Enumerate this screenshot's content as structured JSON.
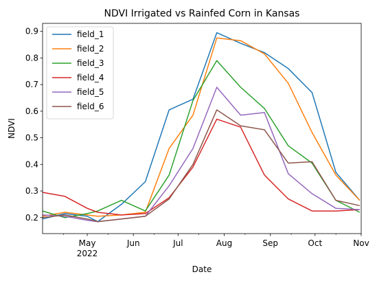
{
  "chart_data": {
    "type": "line",
    "title": "NDVI Irrigated vs Rainfed Corn in Kansas",
    "xlabel": "Date",
    "ylabel": "NDVI",
    "xlim": [
      "2022-04-01",
      "2022-11-01"
    ],
    "ylim": [
      0.14,
      0.93
    ],
    "x_ticks": [
      {
        "date": "2022-05-01",
        "label": "May",
        "sublabel": "2022"
      },
      {
        "date": "2022-06-01",
        "label": "Jun",
        "sublabel": ""
      },
      {
        "date": "2022-07-01",
        "label": "Jul",
        "sublabel": ""
      },
      {
        "date": "2022-08-01",
        "label": "Aug",
        "sublabel": ""
      },
      {
        "date": "2022-09-01",
        "label": "Sep",
        "sublabel": ""
      },
      {
        "date": "2022-10-01",
        "label": "Oct",
        "sublabel": ""
      },
      {
        "date": "2022-11-01",
        "label": "Nov",
        "sublabel": ""
      }
    ],
    "x_minor_ticks": [
      "2022-04-15",
      "2022-05-15",
      "2022-06-15",
      "2022-07-15",
      "2022-08-15",
      "2022-09-15",
      "2022-10-15"
    ],
    "y_ticks": [
      0.2,
      0.3,
      0.4,
      0.5,
      0.6,
      0.7,
      0.8,
      0.9
    ],
    "grid": false,
    "legend": "top-left",
    "x": [
      "2022-04-01",
      "2022-04-16",
      "2022-05-01",
      "2022-05-08",
      "2022-05-24",
      "2022-06-09",
      "2022-06-25",
      "2022-07-11",
      "2022-07-27",
      "2022-08-12",
      "2022-08-28",
      "2022-09-13",
      "2022-09-29",
      "2022-10-15",
      "2022-10-31"
    ],
    "series": [
      {
        "name": "field_1",
        "color": "#1f77b4",
        "values": [
          0.195,
          0.215,
          0.205,
          0.185,
          0.25,
          0.335,
          0.605,
          0.645,
          0.895,
          0.855,
          0.82,
          0.76,
          0.67,
          0.37,
          0.265
        ]
      },
      {
        "name": "field_2",
        "color": "#ff7f0e",
        "values": [
          0.205,
          0.22,
          0.21,
          0.205,
          0.21,
          0.22,
          0.46,
          0.585,
          0.875,
          0.865,
          0.815,
          0.705,
          0.52,
          0.36,
          0.265
        ]
      },
      {
        "name": "field_3",
        "color": "#2ca02c",
        "values": [
          0.225,
          0.2,
          0.215,
          0.225,
          0.265,
          0.225,
          0.36,
          0.64,
          0.79,
          0.69,
          0.61,
          0.47,
          0.405,
          0.265,
          0.22
        ]
      },
      {
        "name": "field_4",
        "color": "#d62728",
        "values": [
          0.295,
          0.28,
          0.235,
          0.22,
          0.21,
          0.215,
          0.275,
          0.39,
          0.57,
          0.54,
          0.36,
          0.27,
          0.225,
          0.225,
          0.23
        ]
      },
      {
        "name": "field_5",
        "color": "#9467bd",
        "values": [
          0.21,
          0.205,
          0.19,
          0.185,
          0.195,
          0.205,
          0.32,
          0.46,
          0.69,
          0.585,
          0.595,
          0.365,
          0.29,
          0.235,
          0.23
        ]
      },
      {
        "name": "field_6",
        "color": "#8c564b",
        "values": [
          0.2,
          0.21,
          0.195,
          0.185,
          0.195,
          0.205,
          0.27,
          0.4,
          0.605,
          0.545,
          0.53,
          0.405,
          0.41,
          0.265,
          0.245
        ]
      }
    ]
  }
}
